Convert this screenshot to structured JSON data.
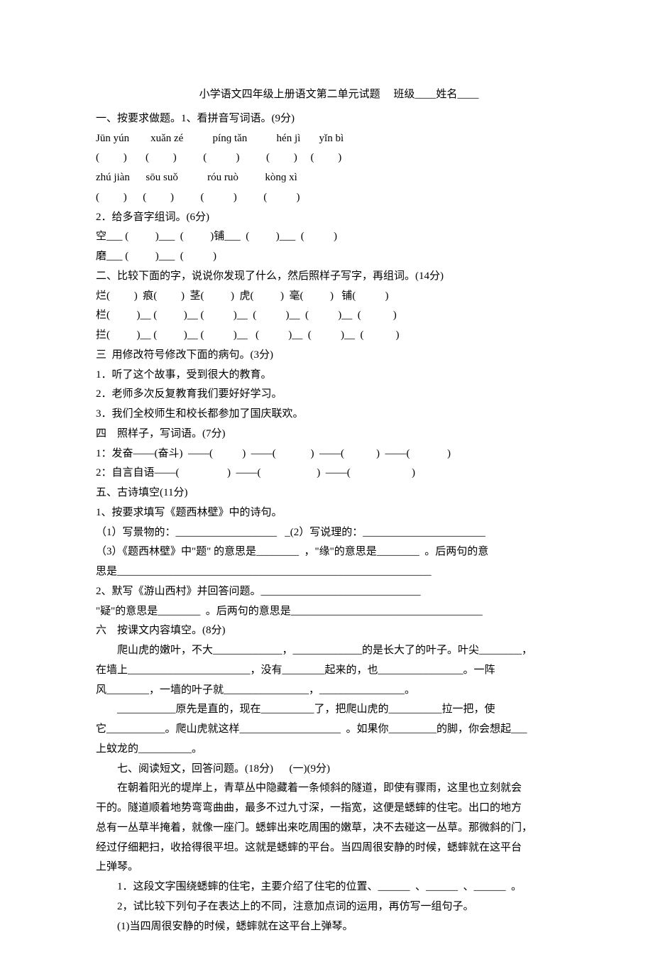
{
  "background_color": "#ffffff",
  "text_color": "#000000",
  "font_family": "SimSun",
  "font_size": 15,
  "line_height": 1.85,
  "title": "小学语文四年级上册语文第二单元试题　 班级____姓名____",
  "lines": [
    "一、按要求做题。1、看拼音写词语。(9分)",
    "Jūn yún        xuǎn zé           pínɡ tǎn           hén jì       yǐn bì",
    "(         )       (         )          (           )          (         )     (         )",
    "zhú jiàn      sōu suǒ           róu ruò          kònɡ xì",
    "(         )      (         )          (           )          (           )",
    "2．给多音字组词。(6分)",
    "空___ (          )___  (          )铺___  (          )___  (           )",
    "磨___ (          )___  (           )",
    "二、比较下面的字，说说你发现了什么，然后照样子写字，再组词。(14分)",
    "烂(         )  痕(         )  茎(          )  虎(          )  毫(          )   铺(           )",
    "栏(          )__ (          )__ (           )__  (           )__  (           )__  (            )",
    "拦(          )__ (          )__ (           )__   (           )__  (           )__  (            )",
    "三  用修改符号修改下面的病句。(3分)",
    "1．听了这个故事，受到很大的教育。",
    "2．老师多次反复教育我们要好好学习。",
    "3．我们全校师生和校长都参加了国庆联欢。",
    "四　照样子，写词语。(7分)",
    "1：发奋——(奋斗)  ——(           )  ——(             )  ——(            )  ——(              )",
    "",
    "2：自言自语——(                  )  ——(                     )  ——(                       )",
    "五、古诗填空(11分)",
    "1、按要求填写《题西林壁》中的诗句。",
    "（1）写景物的：___________________   _(2）写说理的：_______________________",
    "（3）《题西林壁》中\"题\" 的意思是________  ，\"缘\"的意思是________  。后两句的意",
    "__INDENT0__思是___________________________________________________________",
    "2、默写《游山西村》并回答问题。______________________________",
    "\"疑\"的意思是________  。后两句的意思是____________________________________",
    "六　按课文内容填空。(8分)",
    "　　爬山虎的嫩叶，不大_____________，_____________的是长大了的叶子。叶尖________，",
    "__INDENT0__在墙上_______________________，没有________起来的，也________________。一阵",
    "__INDENT0__风________，一墙的叶子就________________，________________。",
    "　　___________原先是直的，现在__________了，把爬山虎的__________拉一把，使",
    "__INDENT0__它___________。爬山虎就这样___________________  。如果你_________的脚，你会想起___",
    "__INDENT0__上蚊龙的__________。",
    "　　七、阅读短文，回答问题。(18分)　  (一)(9分)",
    "　　在朝着阳光的堤岸上，青草丛中隐藏着一条倾斜的隧道，即使有骤雨，这里也立刻就会",
    "__INDENT0__干的。隧道顺着地势弯弯曲曲，最多不过九寸深，一指宽，这便是蟋蟀的住宅。出口的地方",
    "__INDENT0__总有一丛草半掩着，就像一座门。蟋蟀出来吃周围的嫩草，决不去碰这一丛草。那微斜的门，",
    "__INDENT0__经过仔细耙扫，收拾得很平坦。这就是蟋蟀的平台。当四周很安静的时候，蟋蟀就在这平台",
    "__INDENT0__上弹琴。",
    "　　1．这段文字围绕蟋蟀的住宅，主要介绍了住宅的位置、______  、______  、______  。",
    "　　2，试比较下列句子在表达上的不同，注意加点词的运用，再仿写一组句子。",
    "　　(1)当四周很安静的时候，蟋蟀就在这平台上弹琴。"
  ]
}
